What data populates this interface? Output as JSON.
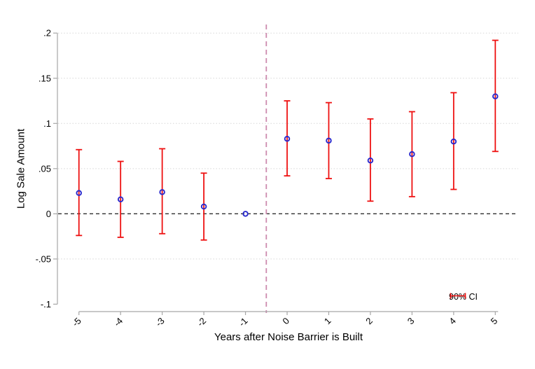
{
  "chart_data": {
    "type": "scatter",
    "subtype": "coefficient-plot-with-error-bars",
    "title": "",
    "xlabel": "Years after Noise Barrier is Built",
    "ylabel": "Log Sale Amount",
    "x": [
      -5,
      -4,
      -3,
      -2,
      -1,
      0,
      1,
      2,
      3,
      4,
      5
    ],
    "xticklabels": [
      "-5",
      "-4",
      "-3",
      "-2",
      "-1",
      "0",
      "1",
      "2",
      "3",
      "4",
      "5"
    ],
    "values": [
      0.023,
      0.016,
      0.024,
      0.008,
      0.0,
      0.083,
      0.081,
      0.059,
      0.066,
      0.08,
      0.13
    ],
    "ci_low": [
      -0.024,
      -0.026,
      -0.022,
      -0.029,
      null,
      0.042,
      0.039,
      0.014,
      0.019,
      0.027,
      0.069
    ],
    "ci_high": [
      0.071,
      0.058,
      0.072,
      0.045,
      null,
      0.125,
      0.123,
      0.105,
      0.113,
      0.134,
      0.192
    ],
    "reference_point_x": -1,
    "yticks": [
      0.2,
      0.15,
      0.1,
      0.05,
      0,
      -0.05,
      -0.1
    ],
    "yticklabels": [
      ".2",
      ".15",
      ".1",
      ".05",
      "0",
      "-.05",
      "-.1"
    ],
    "gridline_yvalues": [
      0.2,
      0.15,
      0.1,
      0.05,
      -0.05
    ],
    "ylim": [
      -0.1082,
      0.2056
    ],
    "xlim": [
      -5.5,
      5.55
    ],
    "vline_x": -0.5,
    "hline_y": 0,
    "grid": "horizontal-dotted",
    "legend": {
      "label": "90% CI",
      "position": "bottom-right"
    },
    "colors": {
      "ci_bar": "#ee1111",
      "marker_stroke": "#2a2acd",
      "vline": "#cc8aae",
      "zero_line": "#303030",
      "axis_line": "#a6a6a6",
      "gridline": "#d6d6d6",
      "text": "#000000"
    }
  }
}
